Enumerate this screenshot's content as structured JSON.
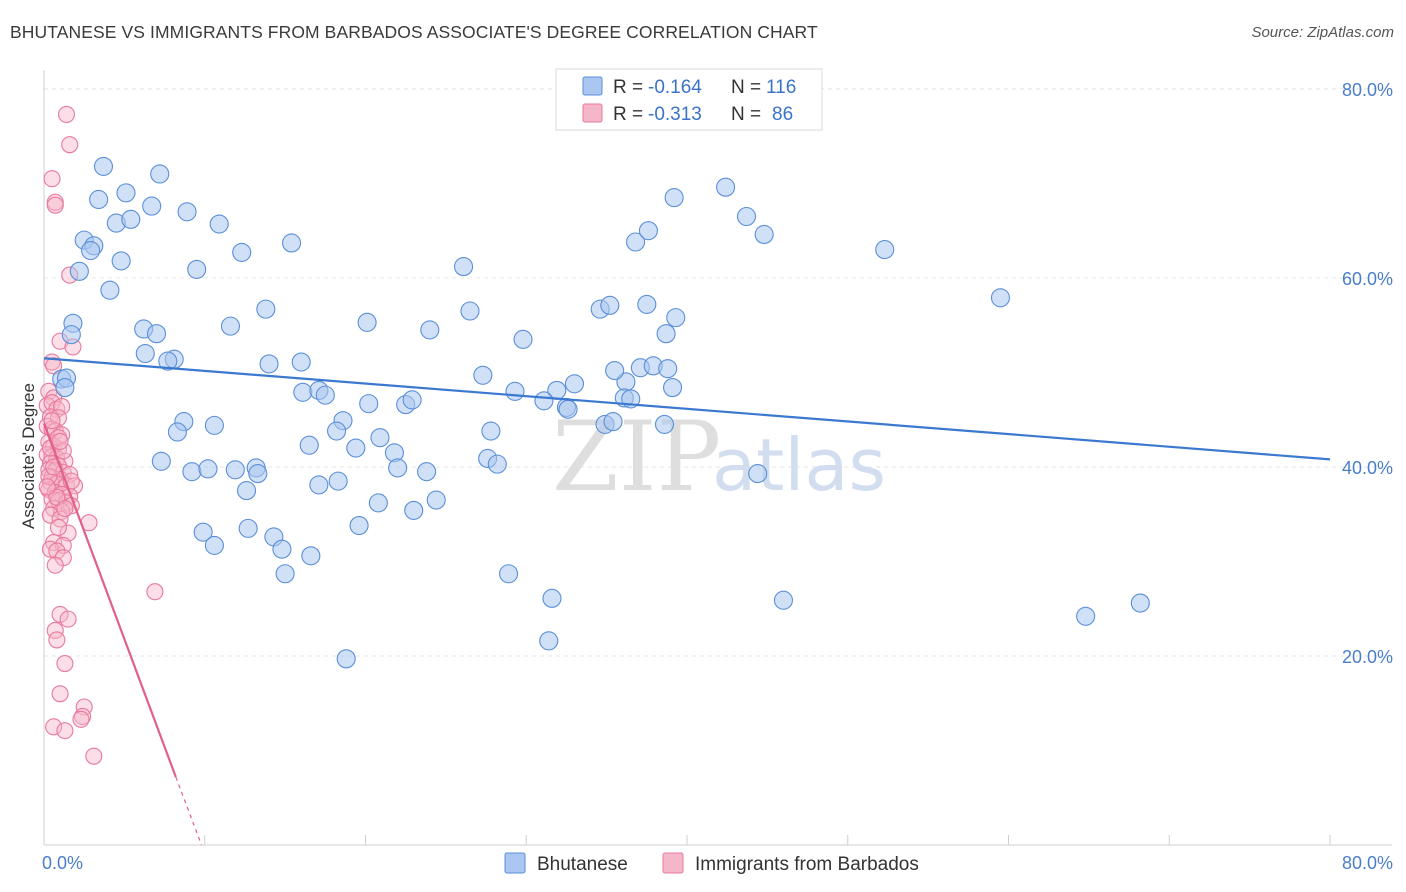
{
  "title": "BHUTANESE VS IMMIGRANTS FROM BARBADOS ASSOCIATE'S DEGREE CORRELATION CHART",
  "source": "Source: ZipAtlas.com",
  "watermark": {
    "zip": "ZIP",
    "atlas": "atlas"
  },
  "colors": {
    "blue_fill": "#a9c7f0",
    "blue_stroke": "#5b8fd8",
    "blue_line": "#3b78d0",
    "pink_fill": "#f6b6c9",
    "pink_stroke": "#e8799c",
    "pink_line": "#e0608a",
    "grid": "#e6e6e6",
    "tick_text": "#4a7ec9"
  },
  "legend": {
    "rows": [
      {
        "r_label": "R = ",
        "r_value": "-0.164",
        "n_label": "N = ",
        "n_value": "116"
      },
      {
        "r_label": "R = ",
        "r_value": "-0.313",
        "n_label": "N = ",
        "n_value": "86"
      }
    ]
  },
  "bottom_legend": [
    "Bhutanese",
    "Immigrants from Barbados"
  ],
  "chart_data": {
    "type": "scatter",
    "title": "BHUTANESE VS IMMIGRANTS FROM BARBADOS ASSOCIATE'S DEGREE CORRELATION CHART",
    "xlabel": "",
    "ylabel": "Associate's Degree",
    "xlim": [
      0,
      80
    ],
    "ylim": [
      0,
      82
    ],
    "x_tick_labels": [
      "0.0%",
      "80.0%"
    ],
    "y_ticks": [
      20,
      40,
      60,
      80
    ],
    "y_tick_labels": [
      "20.0%",
      "40.0%",
      "60.0%",
      "80.0%"
    ],
    "grid": true,
    "series": [
      {
        "name": "Bhutanese",
        "R": -0.164,
        "N": 116,
        "trend": {
          "x": [
            0,
            80
          ],
          "y": [
            51.5,
            40.8
          ]
        },
        "points": [
          [
            3.7,
            71.8
          ],
          [
            7.2,
            71.0
          ],
          [
            5.1,
            69.0
          ],
          [
            3.4,
            68.3
          ],
          [
            6.7,
            67.6
          ],
          [
            8.9,
            67.0
          ],
          [
            4.5,
            65.8
          ],
          [
            5.4,
            66.2
          ],
          [
            10.9,
            65.7
          ],
          [
            2.5,
            64.0
          ],
          [
            3.1,
            63.4
          ],
          [
            2.9,
            62.9
          ],
          [
            12.3,
            62.7
          ],
          [
            15.4,
            63.7
          ],
          [
            4.8,
            61.8
          ],
          [
            9.5,
            60.9
          ],
          [
            2.2,
            60.7
          ],
          [
            26.1,
            61.2
          ],
          [
            4.1,
            58.7
          ],
          [
            13.8,
            56.7
          ],
          [
            26.5,
            56.5
          ],
          [
            20.1,
            55.3
          ],
          [
            1.8,
            55.2
          ],
          [
            11.6,
            54.9
          ],
          [
            24.0,
            54.5
          ],
          [
            6.2,
            54.6
          ],
          [
            1.7,
            54.0
          ],
          [
            7.0,
            54.1
          ],
          [
            29.8,
            53.5
          ],
          [
            6.3,
            52.0
          ],
          [
            8.1,
            51.4
          ],
          [
            7.7,
            51.2
          ],
          [
            14.0,
            50.9
          ],
          [
            16.0,
            51.1
          ],
          [
            27.3,
            49.7
          ],
          [
            1.1,
            49.3
          ],
          [
            1.4,
            49.4
          ],
          [
            1.3,
            48.4
          ],
          [
            16.1,
            47.9
          ],
          [
            17.1,
            48.1
          ],
          [
            17.5,
            47.6
          ],
          [
            20.2,
            46.7
          ],
          [
            22.5,
            46.6
          ],
          [
            22.9,
            47.1
          ],
          [
            29.3,
            48.0
          ],
          [
            31.9,
            48.1
          ],
          [
            31.1,
            47.0
          ],
          [
            32.5,
            46.3
          ],
          [
            33.0,
            48.8
          ],
          [
            8.7,
            44.8
          ],
          [
            10.6,
            44.4
          ],
          [
            8.3,
            43.7
          ],
          [
            18.6,
            44.9
          ],
          [
            18.2,
            43.8
          ],
          [
            20.9,
            43.1
          ],
          [
            16.5,
            42.3
          ],
          [
            19.4,
            42.0
          ],
          [
            21.8,
            41.5
          ],
          [
            27.8,
            43.8
          ],
          [
            27.6,
            40.9
          ],
          [
            28.2,
            40.3
          ],
          [
            7.3,
            40.6
          ],
          [
            9.2,
            39.5
          ],
          [
            10.2,
            39.8
          ],
          [
            11.9,
            39.7
          ],
          [
            13.2,
            39.9
          ],
          [
            13.3,
            39.3
          ],
          [
            12.6,
            37.5
          ],
          [
            17.1,
            38.1
          ],
          [
            18.3,
            38.5
          ],
          [
            22.0,
            39.9
          ],
          [
            23.8,
            39.5
          ],
          [
            20.8,
            36.2
          ],
          [
            23.0,
            35.4
          ],
          [
            24.4,
            36.5
          ],
          [
            19.6,
            33.8
          ],
          [
            9.9,
            33.1
          ],
          [
            10.6,
            31.7
          ],
          [
            12.7,
            33.5
          ],
          [
            14.3,
            32.6
          ],
          [
            14.8,
            31.3
          ],
          [
            16.6,
            30.6
          ],
          [
            15.0,
            28.7
          ],
          [
            28.9,
            28.7
          ],
          [
            31.6,
            26.1
          ],
          [
            18.8,
            19.7
          ],
          [
            31.4,
            21.6
          ],
          [
            34.6,
            56.7
          ],
          [
            35.2,
            57.1
          ],
          [
            36.2,
            49.0
          ],
          [
            36.1,
            47.3
          ],
          [
            34.9,
            44.5
          ],
          [
            35.4,
            44.8
          ],
          [
            35.5,
            50.2
          ],
          [
            37.1,
            50.5
          ],
          [
            37.9,
            50.7
          ],
          [
            38.8,
            50.4
          ],
          [
            37.5,
            57.2
          ],
          [
            39.1,
            48.4
          ],
          [
            38.6,
            44.5
          ],
          [
            38.7,
            54.1
          ],
          [
            39.3,
            55.8
          ],
          [
            36.8,
            63.8
          ],
          [
            37.6,
            65.0
          ],
          [
            39.2,
            68.5
          ],
          [
            42.4,
            69.6
          ],
          [
            43.7,
            66.5
          ],
          [
            44.8,
            64.6
          ],
          [
            44.4,
            39.3
          ],
          [
            46.0,
            25.9
          ],
          [
            52.3,
            63.0
          ],
          [
            59.5,
            57.9
          ],
          [
            64.8,
            24.2
          ],
          [
            68.2,
            25.6
          ],
          [
            32.6,
            46.1
          ],
          [
            36.5,
            47.2
          ]
        ]
      },
      {
        "name": "Immigrants from Barbados",
        "R": -0.313,
        "N": 86,
        "trend": {
          "x": [
            0,
            8.2
          ],
          "y": [
            44.6,
            7.2
          ]
        },
        "trend_dashed": {
          "x": [
            8.2,
            9.8
          ],
          "y": [
            7.2,
            0
          ]
        },
        "points": [
          [
            1.4,
            77.3
          ],
          [
            1.6,
            74.1
          ],
          [
            0.5,
            70.5
          ],
          [
            0.7,
            68.0
          ],
          [
            0.7,
            67.7
          ],
          [
            1.6,
            60.3
          ],
          [
            1.0,
            53.3
          ],
          [
            1.8,
            52.7
          ],
          [
            0.5,
            51.1
          ],
          [
            0.6,
            50.7
          ],
          [
            0.3,
            48.0
          ],
          [
            0.6,
            47.3
          ],
          [
            0.2,
            46.5
          ],
          [
            0.5,
            46.8
          ],
          [
            0.8,
            46.1
          ],
          [
            1.1,
            46.4
          ],
          [
            0.4,
            45.3
          ],
          [
            0.9,
            45.2
          ],
          [
            0.2,
            44.3
          ],
          [
            0.5,
            44.0
          ],
          [
            0.7,
            43.8
          ],
          [
            1.1,
            43.4
          ],
          [
            0.3,
            42.6
          ],
          [
            0.6,
            42.2
          ],
          [
            0.9,
            41.9
          ],
          [
            0.2,
            41.3
          ],
          [
            0.5,
            41.1
          ],
          [
            0.8,
            40.9
          ],
          [
            1.3,
            40.6
          ],
          [
            0.4,
            40.4
          ],
          [
            0.9,
            40.1
          ],
          [
            0.3,
            39.7
          ],
          [
            0.7,
            39.6
          ],
          [
            1.2,
            39.4
          ],
          [
            1.6,
            39.2
          ],
          [
            0.5,
            38.9
          ],
          [
            1.0,
            38.7
          ],
          [
            0.4,
            38.4
          ],
          [
            0.8,
            38.2
          ],
          [
            1.4,
            38.0
          ],
          [
            1.9,
            38.0
          ],
          [
            0.3,
            37.6
          ],
          [
            0.7,
            37.3
          ],
          [
            1.1,
            37.1
          ],
          [
            1.6,
            36.9
          ],
          [
            0.5,
            36.6
          ],
          [
            0.9,
            36.4
          ],
          [
            1.4,
            36.2
          ],
          [
            1.7,
            35.9
          ],
          [
            0.6,
            35.6
          ],
          [
            1.1,
            35.3
          ],
          [
            0.4,
            34.9
          ],
          [
            1.0,
            34.5
          ],
          [
            2.8,
            34.1
          ],
          [
            1.5,
            33.0
          ],
          [
            0.6,
            32.0
          ],
          [
            1.2,
            31.7
          ],
          [
            0.4,
            31.3
          ],
          [
            0.8,
            31.1
          ],
          [
            1.2,
            30.4
          ],
          [
            0.7,
            29.6
          ],
          [
            6.9,
            26.8
          ],
          [
            1.0,
            24.4
          ],
          [
            1.5,
            23.9
          ],
          [
            0.7,
            22.7
          ],
          [
            0.8,
            21.7
          ],
          [
            1.3,
            19.2
          ],
          [
            1.0,
            16.0
          ],
          [
            2.5,
            14.6
          ],
          [
            2.4,
            13.6
          ],
          [
            2.3,
            13.3
          ],
          [
            0.6,
            12.5
          ],
          [
            1.3,
            12.1
          ],
          [
            3.1,
            9.4
          ],
          [
            0.4,
            42.0
          ],
          [
            0.9,
            43.1
          ],
          [
            0.5,
            44.9
          ],
          [
            1.2,
            41.7
          ],
          [
            0.3,
            39.0
          ],
          [
            0.8,
            36.8
          ],
          [
            1.3,
            35.6
          ],
          [
            0.6,
            40.0
          ],
          [
            1.0,
            42.7
          ],
          [
            0.2,
            37.9
          ],
          [
            1.7,
            38.5
          ],
          [
            0.9,
            33.6
          ]
        ]
      }
    ]
  }
}
